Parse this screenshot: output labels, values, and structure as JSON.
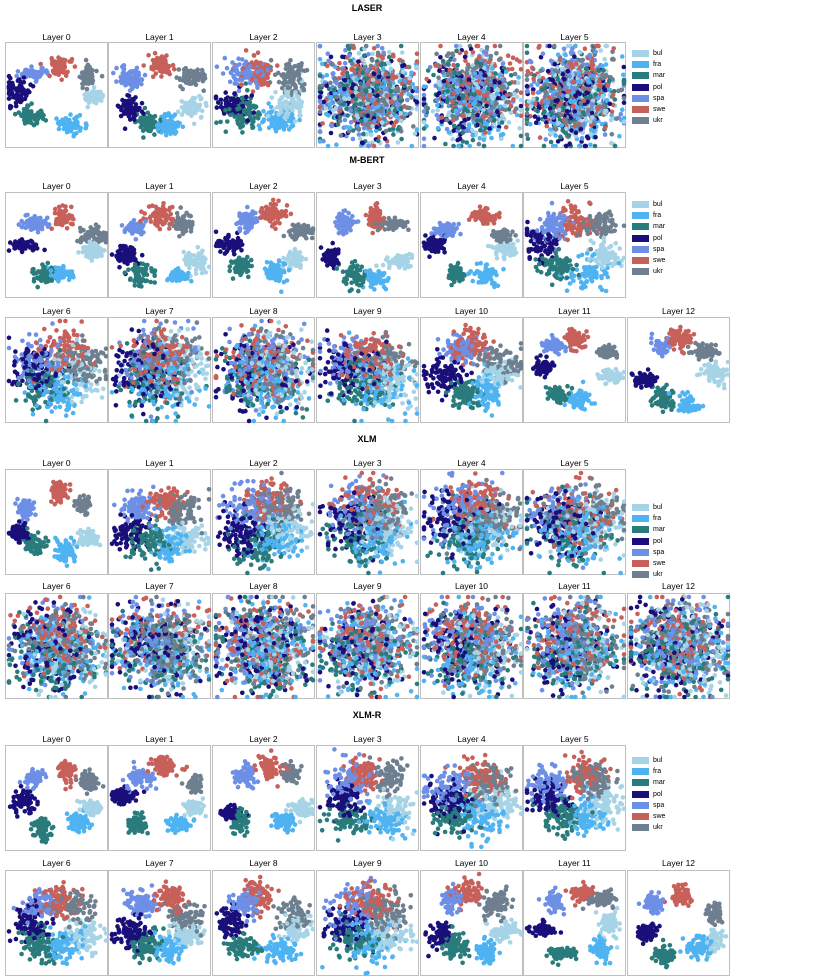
{
  "colors": {
    "bul": "#a6d4e6",
    "fra": "#4fb3f2",
    "mar": "#2a7b7b",
    "pol": "#1a0f7a",
    "spa": "#6d8fe6",
    "swe": "#c8605a",
    "ukr": "#6e7f8f"
  },
  "chart_data": [
    {
      "type": "scatter",
      "title": "LASER",
      "panels": [
        "Layer 0",
        "Layer 1",
        "Layer 2",
        "Layer 3",
        "Layer 4",
        "Layer 5"
      ],
      "legend": [
        "bul",
        "fra",
        "mar",
        "pol",
        "spa",
        "swe",
        "ukr"
      ],
      "mixing": [
        0.0,
        0.05,
        0.15,
        0.85,
        0.8,
        0.85
      ]
    },
    {
      "type": "scatter",
      "title": "M-BERT",
      "panels": [
        "Layer 0",
        "Layer 1",
        "Layer 2",
        "Layer 3",
        "Layer 4",
        "Layer 5",
        "Layer 6",
        "Layer 7",
        "Layer 8",
        "Layer 9",
        "Layer 10",
        "Layer 11",
        "Layer 12"
      ],
      "legend": [
        "bul",
        "fra",
        "mar",
        "pol",
        "spa",
        "swe",
        "ukr"
      ],
      "mixing": [
        0.0,
        0.0,
        0.0,
        0.0,
        0.0,
        0.15,
        0.35,
        0.6,
        0.7,
        0.45,
        0.2,
        0.0,
        0.0
      ]
    },
    {
      "type": "scatter",
      "title": "XLM",
      "panels": [
        "Layer 0",
        "Layer 1",
        "Layer 2",
        "Layer 3",
        "Layer 4",
        "Layer 5",
        "Layer 6",
        "Layer 7",
        "Layer 8",
        "Layer 9",
        "Layer 10",
        "Layer 11",
        "Layer 12"
      ],
      "legend": [
        "bul",
        "fra",
        "mar",
        "pol",
        "spa",
        "swe",
        "ukr"
      ],
      "mixing": [
        0.0,
        0.2,
        0.35,
        0.45,
        0.5,
        0.6,
        0.7,
        0.75,
        0.8,
        0.75,
        0.75,
        0.75,
        0.85
      ]
    },
    {
      "type": "scatter",
      "title": "XLM-R",
      "panels": [
        "Layer 0",
        "Layer 1",
        "Layer 2",
        "Layer 3",
        "Layer 4",
        "Layer 5",
        "Layer 6",
        "Layer 7",
        "Layer 8",
        "Layer 9",
        "Layer 10",
        "Layer 11",
        "Layer 12"
      ],
      "legend": [
        "bul",
        "fra",
        "mar",
        "pol",
        "spa",
        "swe",
        "ukr"
      ],
      "mixing": [
        0.0,
        0.0,
        0.0,
        0.2,
        0.3,
        0.25,
        0.2,
        0.15,
        0.1,
        0.3,
        0.05,
        0.0,
        0.0
      ]
    }
  ]
}
